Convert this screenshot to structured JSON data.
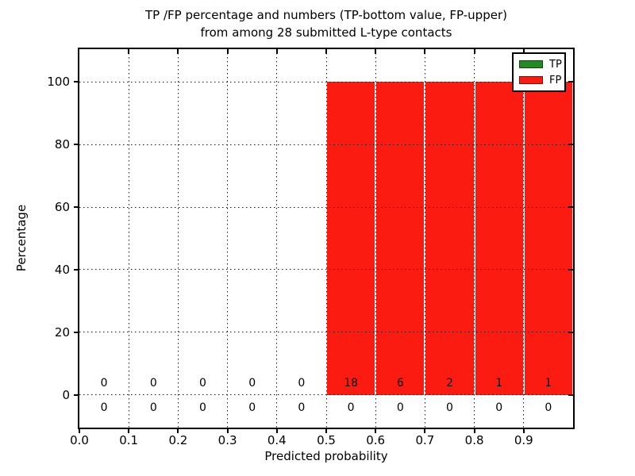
{
  "chart_data": {
    "type": "bar",
    "stacked": true,
    "title_line1": "TP /FP percentage and numbers (TP-bottom value, FP-upper)",
    "title_line2": "from among 28 submitted L-type contacts",
    "xlabel": "Predicted probability",
    "ylabel": "Percentage",
    "xlim": [
      0.0,
      1.0
    ],
    "ylim": [
      -10.5,
      110.5
    ],
    "grid": "dotted, both axes",
    "legend_position": "upper right",
    "background_color": "#ffffff",
    "bin_edges": [
      0.0,
      0.1,
      0.2,
      0.3,
      0.4,
      0.5,
      0.6,
      0.7,
      0.8,
      0.9,
      1.0
    ],
    "x_tick_labels": [
      "0.0",
      "0.1",
      "0.2",
      "0.3",
      "0.4",
      "0.5",
      "0.6",
      "0.7",
      "0.8",
      "0.9"
    ],
    "y_ticks": [
      0,
      20,
      40,
      60,
      80,
      100
    ],
    "y_tick_labels": [
      "0",
      "20",
      "40",
      "60",
      "80",
      "100"
    ],
    "total_submitted": 28,
    "series": [
      {
        "name": "TP",
        "color": "#228b22",
        "percentages": [
          0,
          0,
          0,
          0,
          0,
          0,
          0,
          0,
          0,
          0
        ],
        "counts": [
          0,
          0,
          0,
          0,
          0,
          0,
          0,
          0,
          0,
          0
        ],
        "count_label_y": -4.5
      },
      {
        "name": "FP",
        "color": "#fb1b10",
        "percentages": [
          0,
          0,
          0,
          0,
          0,
          100,
          100,
          100,
          100,
          100
        ],
        "counts": [
          0,
          0,
          0,
          0,
          0,
          18,
          6,
          2,
          1,
          1
        ],
        "count_label_y": 3.5
      }
    ]
  }
}
